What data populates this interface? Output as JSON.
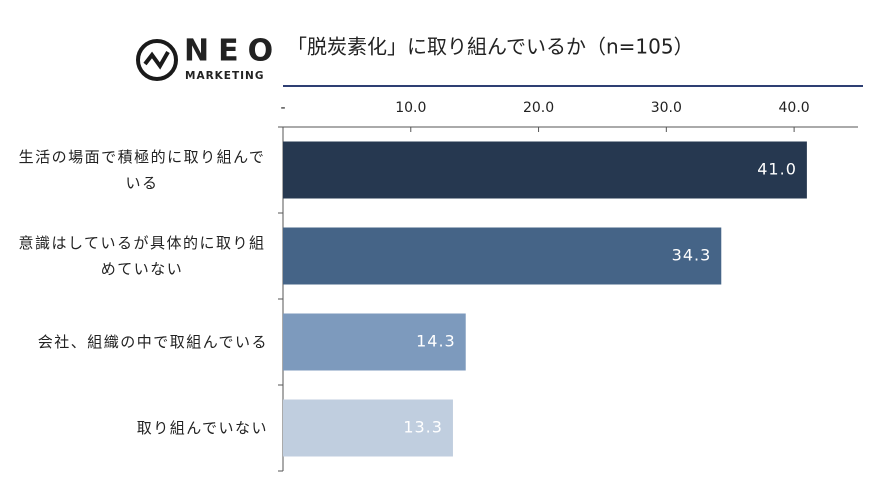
{
  "brand": {
    "name": "NEO",
    "tagline": "MARKETING"
  },
  "chart_data": {
    "type": "barh",
    "title": "「脱炭素化」に取り組んでいるか（n=105）",
    "categories": [
      "生活の場面で積極的に取り組んでいる",
      "意識はしているが具体的に取り組めていない",
      "会社、組織の中で取組んでいる",
      "取り組んでいない"
    ],
    "values": [
      41.0,
      34.3,
      14.3,
      13.3
    ],
    "value_labels": [
      "41.0",
      "34.3",
      "14.3",
      "13.3"
    ],
    "colors": [
      "#263850",
      "#456487",
      "#7d9abd",
      "#c0cedf"
    ],
    "xlim": [
      0,
      45
    ],
    "xticks": [
      {
        "value": 0,
        "label": "-"
      },
      {
        "value": 10,
        "label": "10.0"
      },
      {
        "value": 20,
        "label": "20.0"
      },
      {
        "value": 30,
        "label": "30.0"
      },
      {
        "value": 40,
        "label": "40.0"
      }
    ],
    "grid": false
  }
}
